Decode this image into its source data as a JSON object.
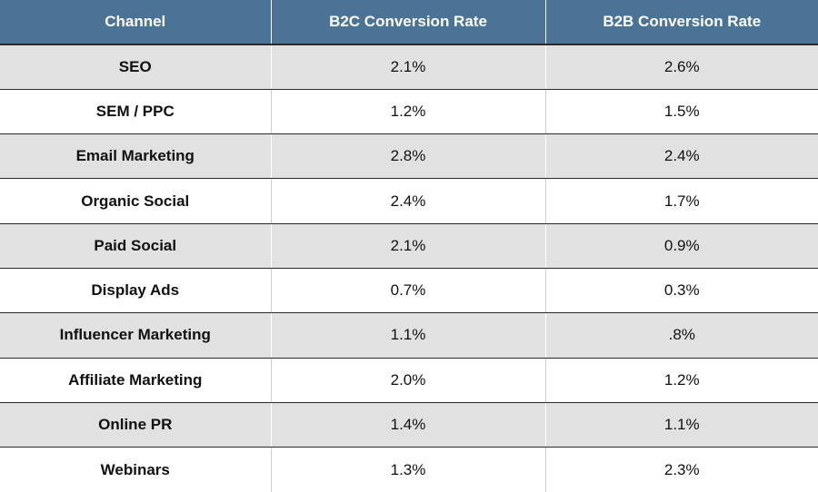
{
  "table": {
    "headers": [
      "Channel",
      "B2C Conversion Rate",
      "B2B Conversion Rate"
    ],
    "rows": [
      [
        "SEO",
        "2.1%",
        "2.6%"
      ],
      [
        "SEM / PPC",
        "1.2%",
        "1.5%"
      ],
      [
        "Email Marketing",
        "2.8%",
        "2.4%"
      ],
      [
        "Organic Social",
        "2.4%",
        "1.7%"
      ],
      [
        "Paid Social",
        "2.1%",
        "0.9%"
      ],
      [
        "Display Ads",
        "0.7%",
        "0.3%"
      ],
      [
        "Influencer Marketing",
        "1.1%",
        ".8%"
      ],
      [
        "Affiliate Marketing",
        "2.0%",
        "1.2%"
      ],
      [
        "Online PR",
        "1.4%",
        "1.1%"
      ],
      [
        "Webinars",
        "1.3%",
        "2.3%"
      ]
    ]
  },
  "colors": {
    "header_bg": "#4a7396",
    "header_text": "#ffffff",
    "row_shaded": "#e1e1e1",
    "row_plain": "#ffffff",
    "row_divider": "#2a2a2a"
  }
}
